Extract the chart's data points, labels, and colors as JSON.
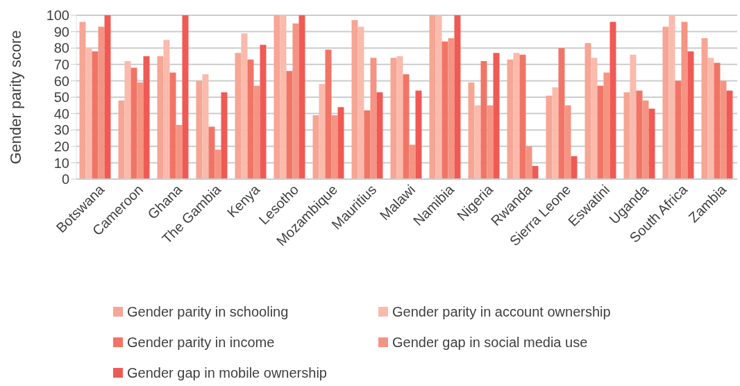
{
  "chart_data": {
    "type": "bar",
    "ylabel": "Gender parity score",
    "categories": [
      "Botswana",
      "Cameroon",
      "Ghana",
      "The Gambia",
      "Kenya",
      "Lesotho",
      "Mozambique",
      "Mauritius",
      "Malawi",
      "Namibia",
      "Nigeria",
      "Rwanda",
      "Sierra Leone",
      "Eswatini",
      "Uganda",
      "South Africa",
      "Zambia"
    ],
    "series": [
      {
        "name": "Gender parity in schooling",
        "color": "#f7a594",
        "values": [
          96,
          48,
          75,
          60,
          77,
          100,
          39,
          97,
          74,
          100,
          59,
          73,
          51,
          83,
          53,
          93,
          86
        ]
      },
      {
        "name": "Gender parity in account ownership",
        "color": "#fabbad",
        "values": [
          80,
          72,
          85,
          64,
          89,
          100,
          58,
          93,
          75,
          100,
          45,
          77,
          56,
          74,
          76,
          100,
          74
        ]
      },
      {
        "name": "Gender parity in income",
        "color": "#f17566",
        "values": [
          78,
          68,
          65,
          32,
          73,
          66,
          79,
          42,
          64,
          84,
          72,
          76,
          80,
          57,
          54,
          60,
          71
        ]
      },
      {
        "name": "Gender gap in social media use",
        "color": "#f59482",
        "values": [
          93,
          59,
          33,
          18,
          57,
          95,
          39,
          74,
          21,
          86,
          45,
          20,
          45,
          65,
          48,
          96,
          60
        ]
      },
      {
        "name": "Gender gap in mobile ownership",
        "color": "#f05a55",
        "values": [
          100,
          75,
          100,
          53,
          82,
          100,
          44,
          53,
          54,
          100,
          77,
          8,
          14,
          96,
          43,
          78,
          54
        ]
      }
    ],
    "ylim": [
      0,
      100
    ],
    "yticks": [
      0,
      10,
      20,
      30,
      40,
      50,
      60,
      70,
      80,
      90,
      100
    ],
    "grid": "y",
    "legend": "bottom"
  }
}
